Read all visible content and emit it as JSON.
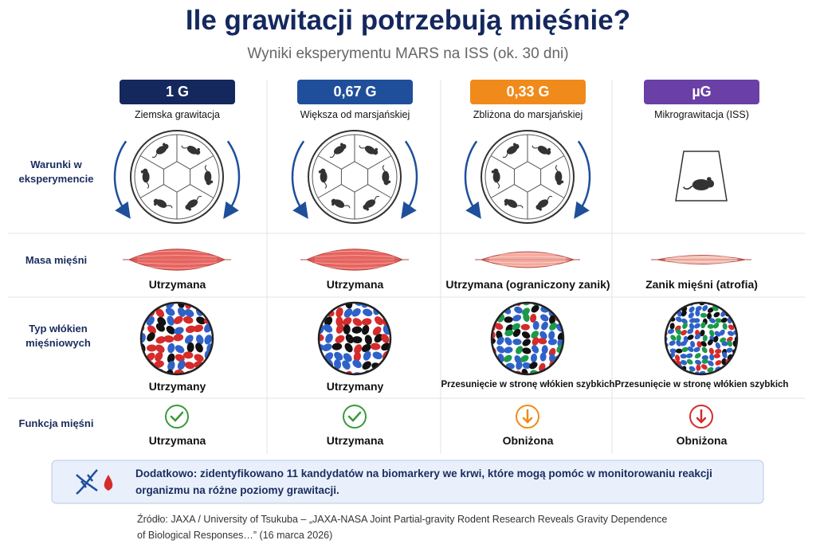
{
  "header": {
    "title": "Ile grawitacji potrzebują mięśnie?",
    "subtitle": "Wyniki eksperymentu MARS na ISS (ok. 30 dni)"
  },
  "row_labels": {
    "conditions": "Warunki w eksperymencie",
    "mass": "Masa mięśni",
    "fibers": "Typ włókien mięśniowych",
    "function": "Funkcja mięśni"
  },
  "columns": [
    {
      "badge": "1 G",
      "color": "#14285e",
      "label": "Ziemska grawitacja",
      "mass": "Utrzymana",
      "fibers": "Utrzymany",
      "function": "Utrzymana"
    },
    {
      "badge": "0,67 G",
      "color": "#1f4f9a",
      "label": "Większa od marsjańskiej",
      "mass": "Utrzymana",
      "fibers": "Utrzymany",
      "function": "Utrzymana"
    },
    {
      "badge": "0,33 G",
      "color": "#f08a1a",
      "label": "Zbliżona do marsjańskiej",
      "mass": "Utrzymana (ograniczony zanik)",
      "fibers": "Przesunięcie w stronę włókien szybkich",
      "function": "Obniżona"
    },
    {
      "badge": "µG",
      "color": "#6a3fa6",
      "label": "Mikrograwitacja (ISS)",
      "mass": "Zanik mięśni (atrofia)",
      "fibers": "Przesunięcie w stronę włókien szybkich",
      "function": "Obniżona"
    }
  ],
  "note": {
    "lead": "Dodatkowo:",
    "text": "zidentyfikowano 11 kandydatów na biomarkery we krwi, które mogą pomóc w monitorowaniu reakcji organizmu na różne poziomy grawitacji."
  },
  "source": "Źródło: JAXA / University of Tsukuba – „JAXA-NASA Joint Partial-gravity Rodent Research Reveals Gravity Dependence of Biological Responses…” (16 marca 2026)"
}
